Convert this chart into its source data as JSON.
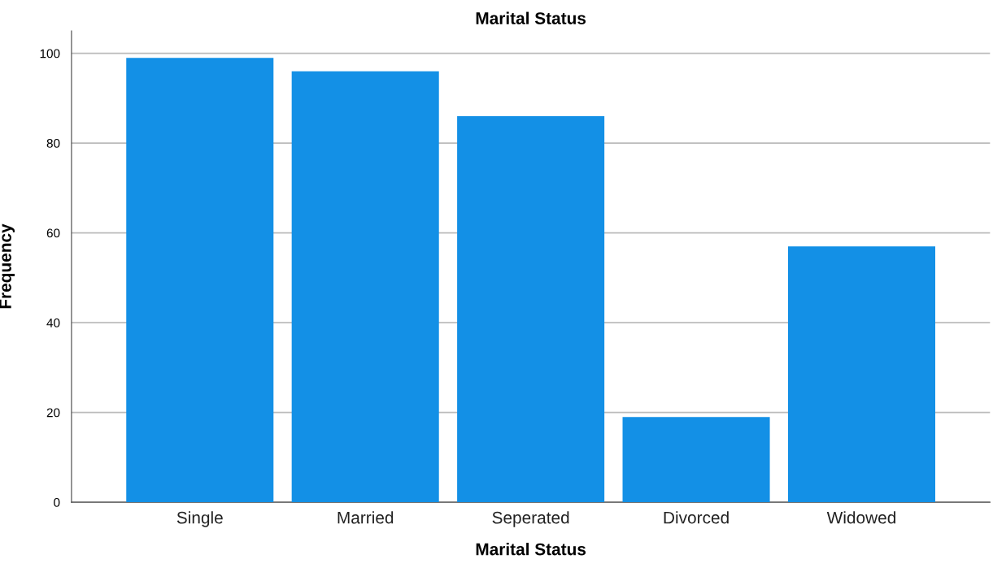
{
  "chart_data": {
    "type": "bar",
    "title": "Marital Status",
    "xlabel": "Marital Status",
    "ylabel": "Frequency",
    "categories": [
      "Single",
      "Married",
      "Seperated",
      "Divorced",
      "Widowed"
    ],
    "values": [
      99,
      96,
      86,
      19,
      57
    ],
    "color": "#1390e6",
    "ylim": [
      0,
      105
    ],
    "yticks": [
      0,
      20,
      40,
      60,
      80,
      100
    ],
    "grid": "y"
  }
}
